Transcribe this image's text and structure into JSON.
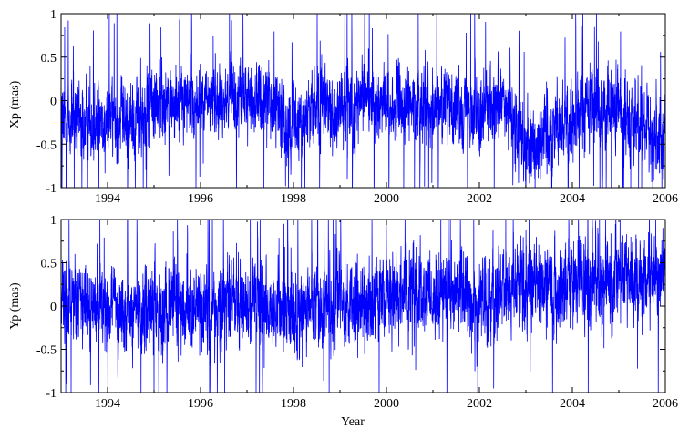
{
  "chart_data": [
    {
      "type": "line",
      "ylabel": "Xp (mas)",
      "xlabel": "",
      "xlim": [
        1993.0,
        2006.0
      ],
      "ylim": [
        -1,
        1
      ],
      "x_ticks": [
        "1994",
        "1996",
        "1998",
        "2000",
        "2002",
        "2004",
        "2006"
      ],
      "y_ticks": [
        "1",
        "0.5",
        "0",
        "-0.5",
        "-1"
      ],
      "grid": false,
      "series_color": "#0000ff",
      "series": [
        {
          "name": "",
          "description": "dense daily residual time series, approximate running level",
          "x": [
            1993.0,
            1993.5,
            1994.0,
            1994.5,
            1995.0,
            1995.5,
            1996.0,
            1996.5,
            1997.0,
            1997.5,
            1998.0,
            1998.5,
            1999.0,
            1999.5,
            2000.0,
            2000.5,
            2001.0,
            2001.5,
            2002.0,
            2002.5,
            2003.0,
            2003.5,
            2004.0,
            2004.5,
            2005.0,
            2005.5,
            2006.0
          ],
          "level": [
            -0.3,
            -0.25,
            -0.2,
            -0.25,
            -0.05,
            0.0,
            -0.05,
            0.05,
            0.0,
            0.05,
            -0.35,
            -0.05,
            -0.15,
            0.0,
            -0.1,
            -0.05,
            -0.05,
            -0.05,
            -0.1,
            -0.05,
            -0.5,
            -0.35,
            -0.2,
            -0.05,
            -0.15,
            -0.25,
            -0.5
          ],
          "spread": [
            0.35,
            0.3,
            0.3,
            0.3,
            0.3,
            0.25,
            0.25,
            0.25,
            0.25,
            0.25,
            0.3,
            0.3,
            0.3,
            0.25,
            0.25,
            0.25,
            0.25,
            0.25,
            0.3,
            0.25,
            0.35,
            0.3,
            0.3,
            0.3,
            0.3,
            0.3,
            0.3
          ]
        }
      ]
    },
    {
      "type": "line",
      "ylabel": "Yp (mas)",
      "xlabel": "Year",
      "xlim": [
        1993.0,
        2006.0
      ],
      "ylim": [
        -1,
        1
      ],
      "x_ticks": [
        "1994",
        "1996",
        "1998",
        "2000",
        "2002",
        "2004",
        "2006"
      ],
      "y_ticks": [
        "1",
        "0.5",
        "0",
        "-0.5",
        "-1"
      ],
      "grid": false,
      "series_color": "#0000ff",
      "series": [
        {
          "name": "",
          "description": "dense daily residual time series, approximate running level",
          "x": [
            1993.0,
            1993.5,
            1994.0,
            1994.5,
            1995.0,
            1995.5,
            1996.0,
            1996.5,
            1997.0,
            1997.5,
            1998.0,
            1998.5,
            1999.0,
            1999.5,
            2000.0,
            2000.5,
            2001.0,
            2001.5,
            2002.0,
            2002.5,
            2003.0,
            2003.5,
            2004.0,
            2004.5,
            2005.0,
            2005.5,
            2006.0
          ],
          "level": [
            0.05,
            0.0,
            -0.05,
            -0.1,
            -0.05,
            0.0,
            -0.05,
            0.0,
            0.05,
            0.0,
            -0.1,
            0.0,
            0.05,
            0.05,
            0.1,
            0.15,
            0.15,
            0.15,
            -0.05,
            0.2,
            0.25,
            0.2,
            0.25,
            0.25,
            0.3,
            0.3,
            0.4
          ],
          "spread": [
            0.3,
            0.3,
            0.3,
            0.3,
            0.3,
            0.3,
            0.3,
            0.3,
            0.3,
            0.3,
            0.3,
            0.3,
            0.3,
            0.3,
            0.3,
            0.3,
            0.3,
            0.3,
            0.35,
            0.3,
            0.3,
            0.3,
            0.35,
            0.35,
            0.3,
            0.3,
            0.3
          ]
        }
      ]
    }
  ]
}
